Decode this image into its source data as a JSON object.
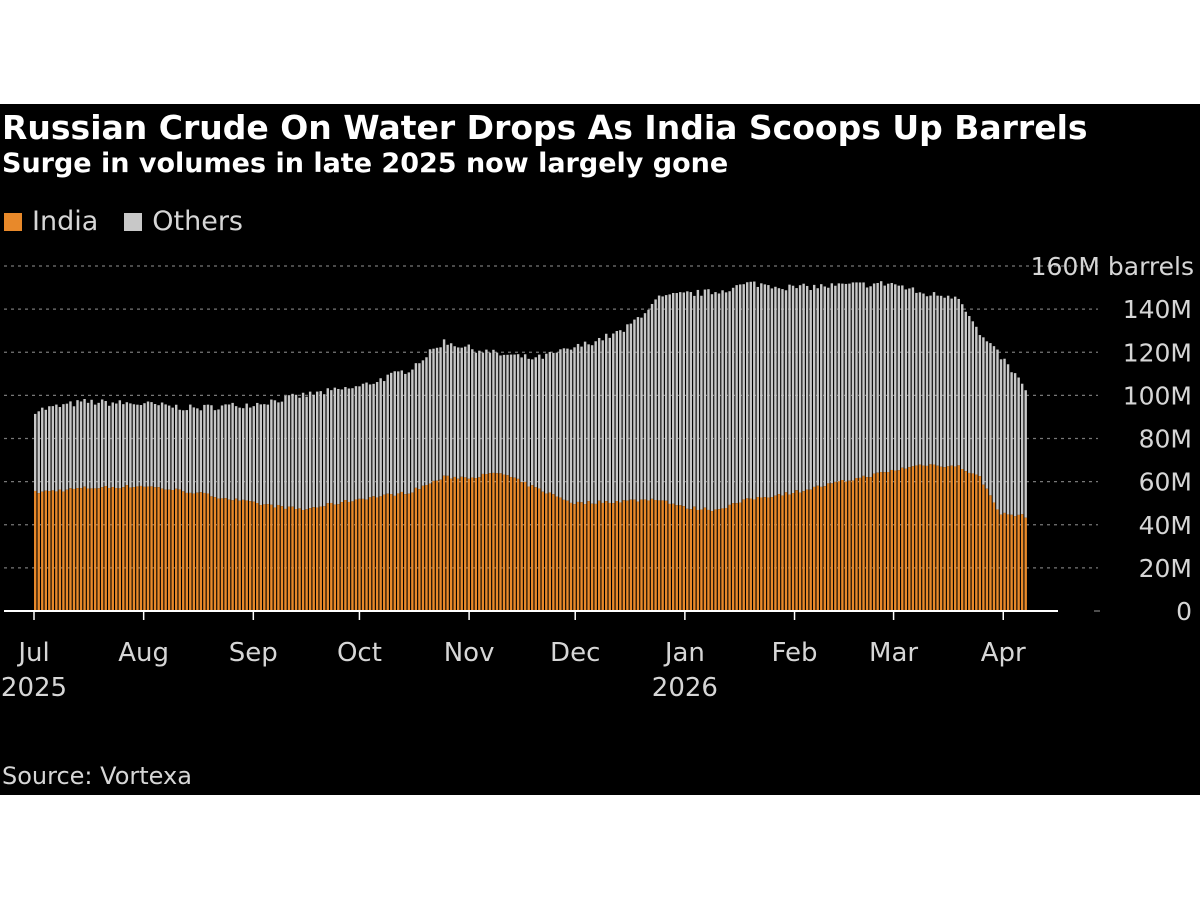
{
  "colors": {
    "background": "#000000",
    "india": "#e8892a",
    "others": "#c8c8c8",
    "text": "#d6d6d6",
    "gridline": "#777777"
  },
  "chart_data": {
    "type": "bar",
    "stacked": true,
    "title": "Russian Crude On Water Drops As India Scoops Up Barrels",
    "subtitle": "Surge in volumes in late 2025 now largely gone",
    "source": "Source: Vortexa",
    "unit": "million barrels",
    "legend": [
      {
        "name": "India",
        "color": "#e8892a"
      },
      {
        "name": "Others",
        "color": "#c8c8c8"
      }
    ],
    "y_axis": {
      "min": 0,
      "max": 160,
      "ticks": [
        {
          "value": 0,
          "label": "0"
        },
        {
          "value": 20,
          "label": "20M"
        },
        {
          "value": 40,
          "label": "40M"
        },
        {
          "value": 60,
          "label": "60M"
        },
        {
          "value": 80,
          "label": "80M"
        },
        {
          "value": 100,
          "label": "100M"
        },
        {
          "value": 120,
          "label": "120M"
        },
        {
          "value": 140,
          "label": "140M"
        },
        {
          "value": 160,
          "label": "160M barrels"
        }
      ]
    },
    "x_axis": {
      "start": "2025-07-01",
      "end": "2026-04-08",
      "ticks": [
        {
          "date": "2025-07-01",
          "label": "Jul",
          "year": "2025"
        },
        {
          "date": "2025-08-01",
          "label": "Aug",
          "year": ""
        },
        {
          "date": "2025-09-01",
          "label": "Sep",
          "year": ""
        },
        {
          "date": "2025-10-01",
          "label": "Oct",
          "year": ""
        },
        {
          "date": "2025-11-01",
          "label": "Nov",
          "year": ""
        },
        {
          "date": "2025-12-01",
          "label": "Dec",
          "year": ""
        },
        {
          "date": "2026-01-01",
          "label": "Jan",
          "year": "2026"
        },
        {
          "date": "2026-02-01",
          "label": "Feb",
          "year": ""
        },
        {
          "date": "2026-03-01",
          "label": "Mar",
          "year": ""
        },
        {
          "date": "2026-04-01",
          "label": "Apr",
          "year": ""
        }
      ]
    },
    "series_keyframes": {
      "note": "Daily values (million barrels) interpolated between these dates, with small day-to-day noise.",
      "dates": [
        "2025-07-01",
        "2025-07-15",
        "2025-08-01",
        "2025-08-15",
        "2025-09-01",
        "2025-09-15",
        "2025-10-01",
        "2025-10-15",
        "2025-10-25",
        "2025-11-01",
        "2025-11-10",
        "2025-11-20",
        "2025-12-01",
        "2025-12-15",
        "2025-12-25",
        "2026-01-01",
        "2026-01-10",
        "2026-01-20",
        "2026-02-01",
        "2026-02-15",
        "2026-03-01",
        "2026-03-10",
        "2026-03-20",
        "2026-03-26",
        "2026-04-01",
        "2026-04-08"
      ],
      "total": [
        93,
        97,
        96,
        94,
        96,
        100,
        104,
        112,
        125,
        122,
        119,
        117,
        122,
        130,
        145,
        147,
        148,
        152,
        150,
        151,
        152,
        147,
        146,
        128,
        118,
        103
      ],
      "india": [
        55,
        57,
        58,
        55,
        50,
        47,
        52,
        55,
        62,
        62,
        64,
        57,
        50,
        51,
        52,
        48,
        47,
        52,
        55,
        60,
        65,
        68,
        67,
        62,
        45,
        44
      ]
    }
  }
}
